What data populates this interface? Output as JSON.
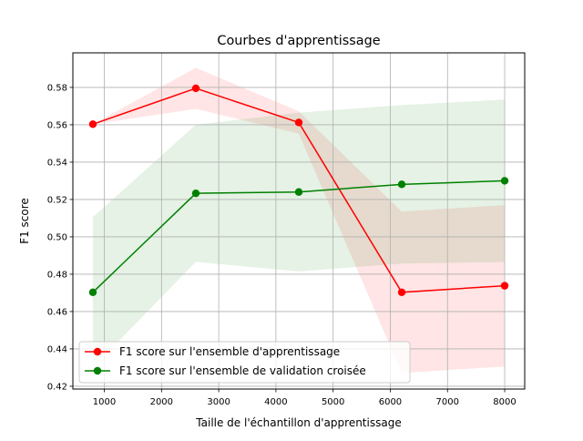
{
  "chart_data": {
    "type": "line",
    "title": "Courbes d'apprentissage",
    "xlabel": "Taille de l'échantillon d'apprentissage",
    "ylabel": "F1 score",
    "xlim": [
      450,
      8350
    ],
    "ylim": [
      0.4185,
      0.5985
    ],
    "x_ticks": [
      1000,
      2000,
      3000,
      4000,
      5000,
      6000,
      7000,
      8000
    ],
    "y_ticks": [
      0.42,
      0.44,
      0.46,
      0.48,
      0.5,
      0.52,
      0.54,
      0.56,
      0.58
    ],
    "grid": true,
    "legend_position": "lower-left",
    "x": [
      800,
      2600,
      4400,
      6200,
      8000
    ],
    "series": [
      {
        "name": "F1 score sur l'ensemble d'apprentissage",
        "color": "#ff0000",
        "values": [
          0.5603,
          0.5795,
          0.5612,
          0.4703,
          0.4738
        ],
        "band_upper": [
          0.5603,
          0.5905,
          0.5672,
          0.5135,
          0.517
        ],
        "band_lower": [
          0.5603,
          0.5685,
          0.5552,
          0.4271,
          0.4306
        ]
      },
      {
        "name": "F1 score sur l'ensemble de validation croisée",
        "color": "#008000",
        "values": [
          0.4703,
          0.5233,
          0.524,
          0.5281,
          0.53
        ],
        "band_upper": [
          0.5105,
          0.56,
          0.5665,
          0.5705,
          0.5735
        ],
        "band_lower": [
          0.43,
          0.4866,
          0.4815,
          0.4857,
          0.4865
        ]
      }
    ]
  }
}
